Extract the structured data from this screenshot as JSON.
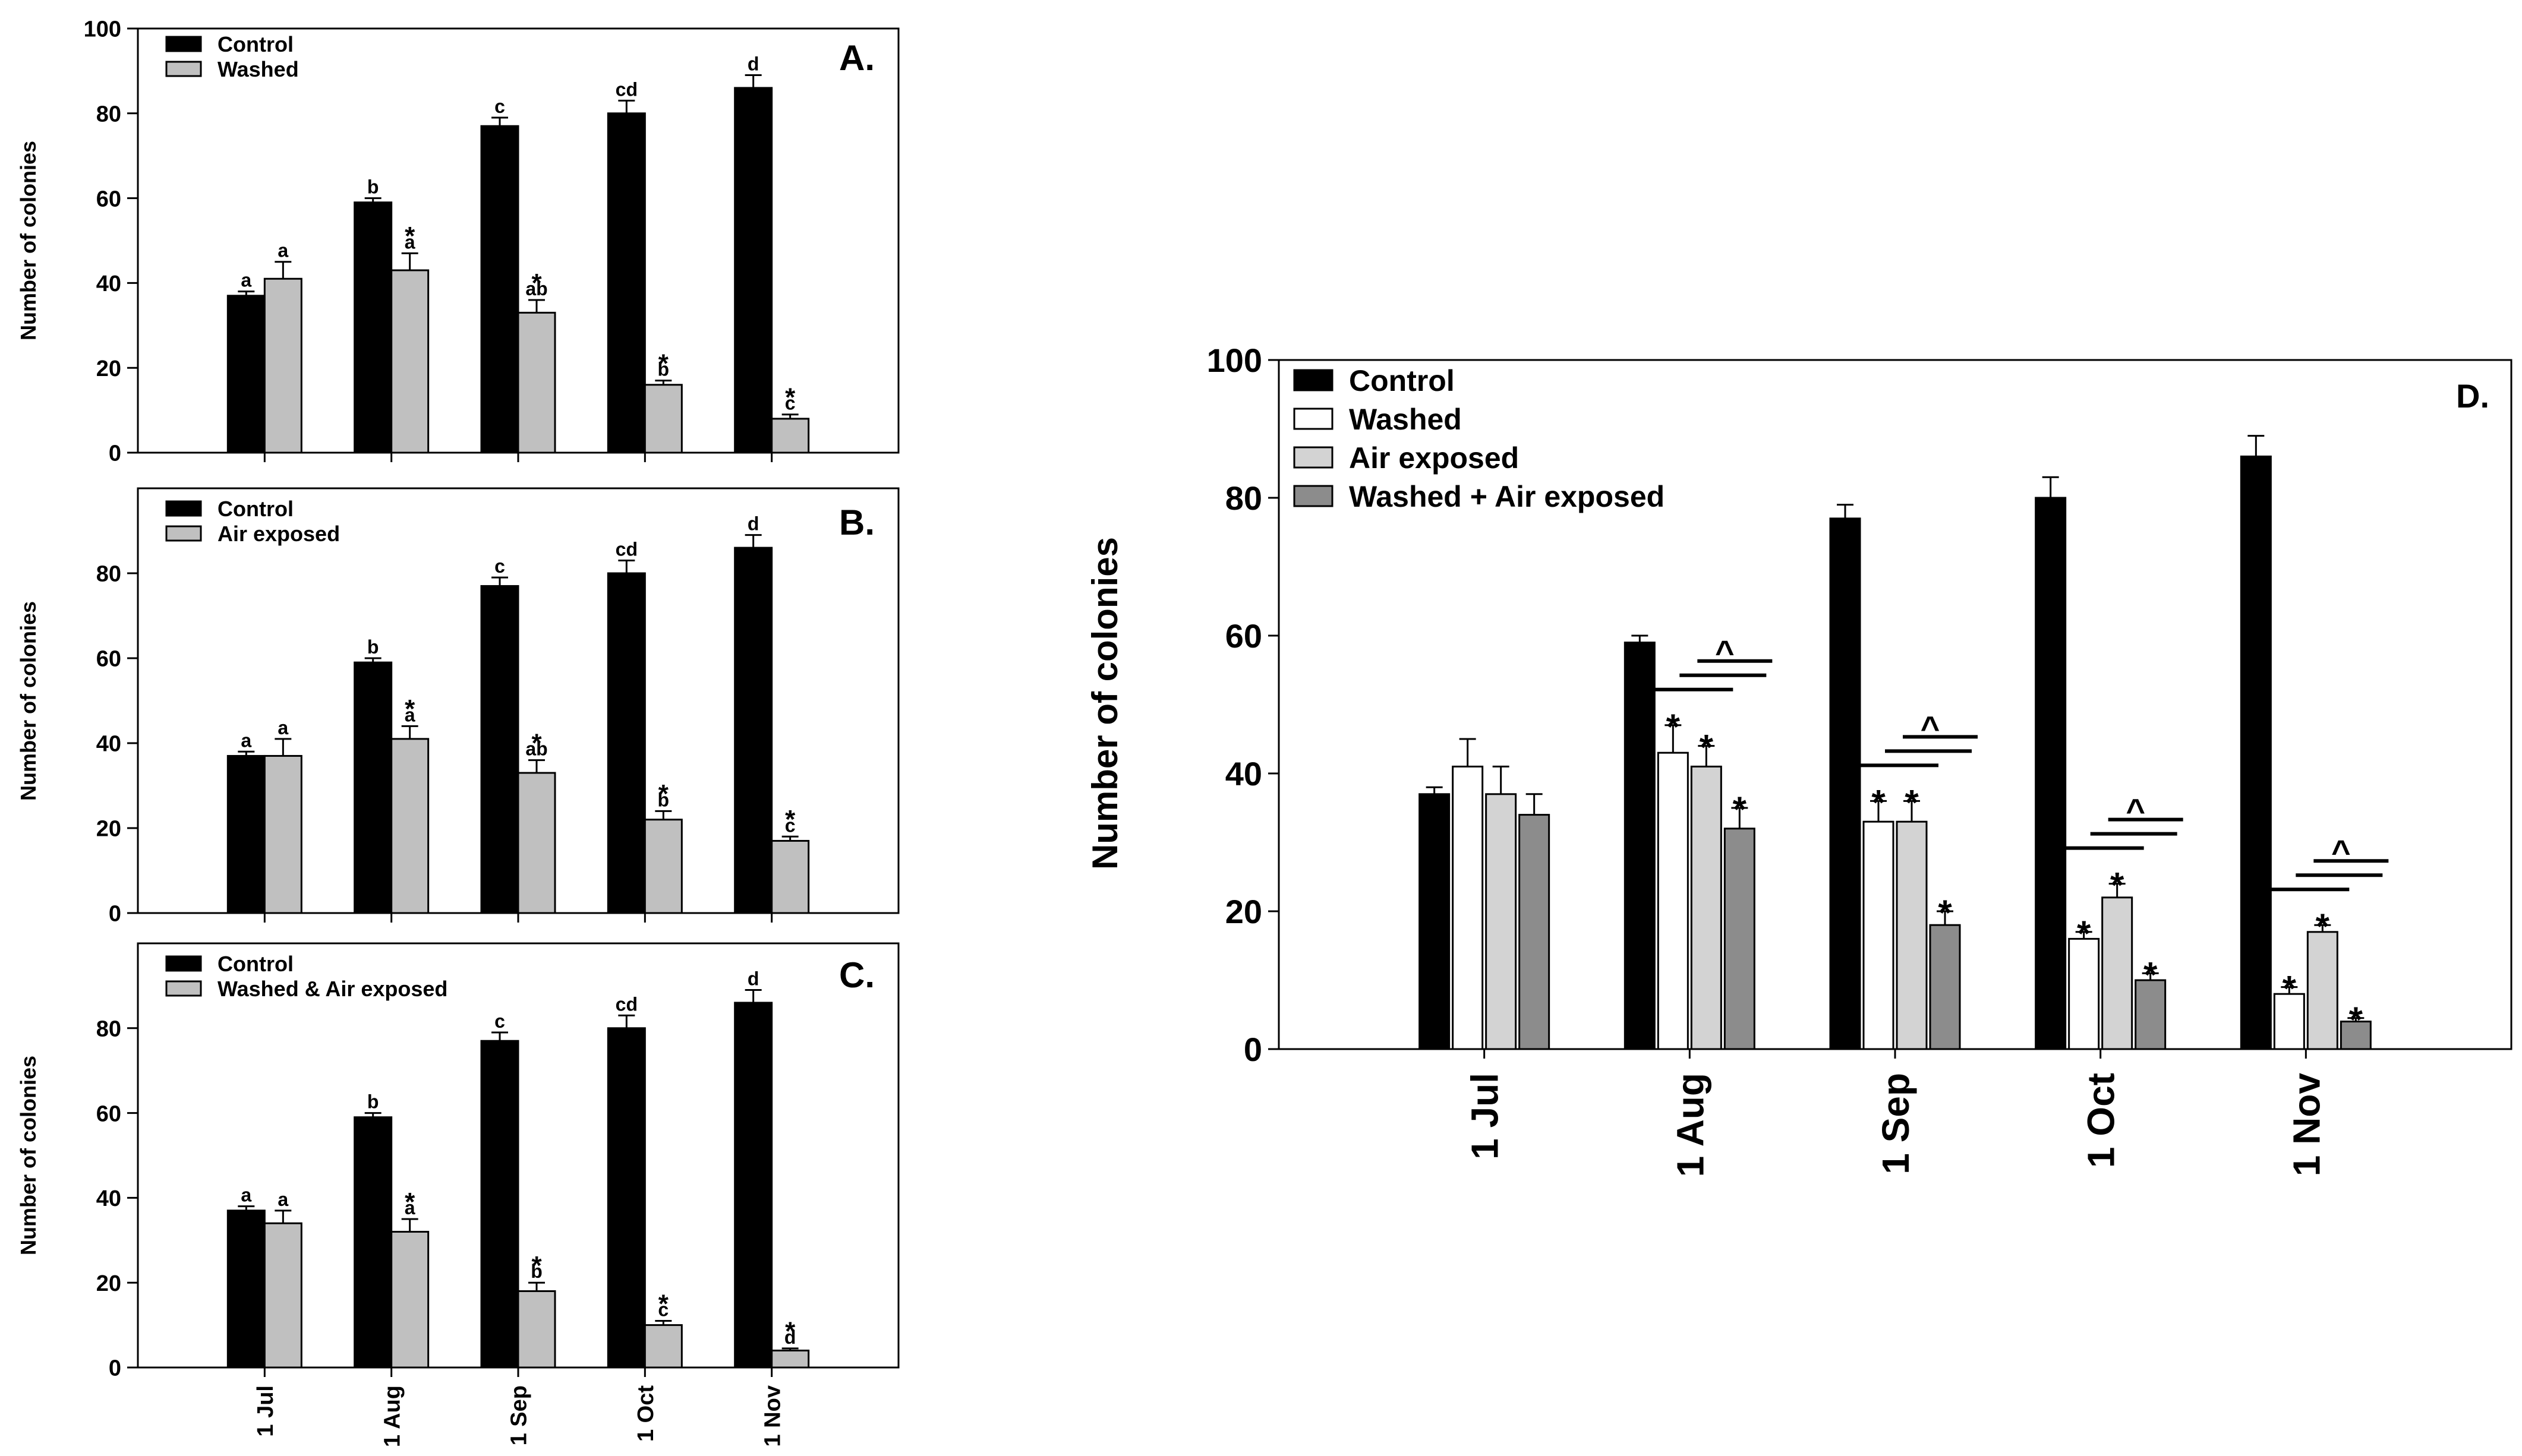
{
  "chart_data": [
    {
      "id": "A",
      "type": "bar",
      "panel_label": "A.",
      "categories": [
        "1 Jul",
        "1 Aug",
        "1 Sep",
        "1 Oct",
        "1 Nov"
      ],
      "ylabel": "Number of colonies",
      "ylim": [
        0,
        100
      ],
      "yticks": [
        "0",
        "20",
        "40",
        "60",
        "80",
        "100"
      ],
      "ytick_values": [
        0,
        20,
        40,
        60,
        80,
        100
      ],
      "legend_position": "top-left",
      "series": [
        {
          "name": "Control",
          "color": "#000000",
          "values": [
            37,
            59,
            77,
            80,
            86
          ],
          "errors": [
            1,
            1,
            2,
            3,
            3
          ],
          "labels": [
            "a",
            "b",
            "c",
            "cd",
            "d"
          ]
        },
        {
          "name": "Washed",
          "color": "#c0c0c0",
          "values": [
            41,
            43,
            33,
            16,
            8
          ],
          "errors": [
            4,
            4,
            3,
            1,
            1
          ],
          "labels": [
            "a",
            "a",
            "ab",
            "b",
            "c"
          ],
          "stars": [
            false,
            true,
            true,
            true,
            true
          ]
        }
      ]
    },
    {
      "id": "B",
      "type": "bar",
      "panel_label": "B.",
      "categories": [
        "1 Jul",
        "1 Aug",
        "1 Sep",
        "1 Oct",
        "1 Nov"
      ],
      "ylabel": "Number of colonies",
      "ylim": [
        0,
        100
      ],
      "yticks": [
        "0",
        "20",
        "40",
        "60",
        "80"
      ],
      "ytick_values": [
        0,
        20,
        40,
        60,
        80
      ],
      "legend_position": "top-left",
      "series": [
        {
          "name": "Control",
          "color": "#000000",
          "values": [
            37,
            59,
            77,
            80,
            86
          ],
          "errors": [
            1,
            1,
            2,
            3,
            3
          ],
          "labels": [
            "a",
            "b",
            "c",
            "cd",
            "d"
          ]
        },
        {
          "name": "Air exposed",
          "color": "#c0c0c0",
          "values": [
            37,
            41,
            33,
            22,
            17
          ],
          "errors": [
            4,
            3,
            3,
            2,
            1
          ],
          "labels": [
            "a",
            "a",
            "ab",
            "b",
            "c"
          ],
          "stars": [
            false,
            true,
            true,
            true,
            true
          ]
        }
      ]
    },
    {
      "id": "C",
      "type": "bar",
      "panel_label": "C.",
      "categories": [
        "1 Jul",
        "1 Aug",
        "1 Sep",
        "1 Oct",
        "1 Nov"
      ],
      "ylabel": "Number of colonies",
      "ylim": [
        0,
        100
      ],
      "yticks": [
        "0",
        "20",
        "40",
        "60",
        "80"
      ],
      "ytick_values": [
        0,
        20,
        40,
        60,
        80
      ],
      "legend_position": "top-left",
      "series": [
        {
          "name": "Control",
          "color": "#000000",
          "values": [
            37,
            59,
            77,
            80,
            86
          ],
          "errors": [
            1,
            1,
            2,
            3,
            3
          ],
          "labels": [
            "a",
            "b",
            "c",
            "cd",
            "d"
          ]
        },
        {
          "name": "Washed & Air exposed",
          "color": "#c0c0c0",
          "values": [
            34,
            32,
            18,
            10,
            4
          ],
          "errors": [
            3,
            3,
            2,
            1,
            0.5
          ],
          "labels": [
            "a",
            "a",
            "b",
            "c",
            "d"
          ],
          "stars": [
            false,
            true,
            true,
            true,
            true
          ]
        }
      ]
    },
    {
      "id": "D",
      "type": "bar",
      "panel_label": "D.",
      "categories": [
        "1 Jul",
        "1 Aug",
        "1 Sep",
        "1 Oct",
        "1 Nov"
      ],
      "ylabel": "Number of colonies",
      "ylim": [
        0,
        100
      ],
      "yticks": [
        "0",
        "20",
        "40",
        "60",
        "80",
        "100"
      ],
      "ytick_values": [
        0,
        20,
        40,
        60,
        80,
        100
      ],
      "legend_position": "top-left",
      "significance_marker": "*",
      "comparison_marker": "^",
      "series": [
        {
          "name": "Control",
          "color": "#000000",
          "values": [
            37,
            59,
            77,
            80,
            86
          ],
          "errors": [
            1,
            1,
            2,
            3,
            3
          ]
        },
        {
          "name": "Washed",
          "color": "#ffffff",
          "values": [
            41,
            43,
            33,
            16,
            8
          ],
          "errors": [
            4,
            4,
            3,
            1,
            1
          ],
          "stars": [
            false,
            true,
            true,
            true,
            true
          ]
        },
        {
          "name": "Air exposed",
          "color": "#d3d3d3",
          "values": [
            37,
            41,
            33,
            22,
            17
          ],
          "errors": [
            4,
            3,
            3,
            2,
            1
          ],
          "stars": [
            false,
            true,
            true,
            true,
            true
          ]
        },
        {
          "name": "Washed + Air exposed",
          "color": "#8c8c8c",
          "values": [
            34,
            32,
            18,
            10,
            4
          ],
          "errors": [
            3,
            3,
            2,
            1,
            0.5
          ],
          "stars": [
            false,
            true,
            true,
            true,
            true
          ]
        }
      ]
    }
  ]
}
